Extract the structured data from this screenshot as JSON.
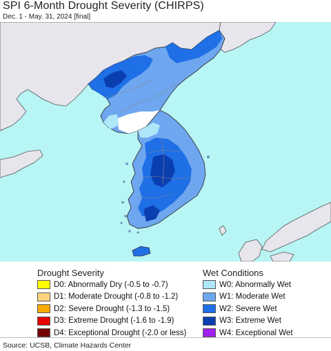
{
  "header": {
    "title": "SPI 6-Month Drought Severity (CHIRPS)",
    "subtitle": "Dec. 1 - May. 31, 2024 [final]"
  },
  "legend": {
    "drought": {
      "heading": "Drought Severity",
      "items": [
        {
          "label": "D0: Abnormally Dry (-0.5 to -0.7)",
          "color": "#ffff00"
        },
        {
          "label": "D1: Moderate Drought (-0.8 to -1.2)",
          "color": "#fcd37f"
        },
        {
          "label": "D2: Severe Drought (-1.3 to -1.5)",
          "color": "#ffaa00"
        },
        {
          "label": "D3: Extreme Drought (-1.6 to -1.9)",
          "color": "#e60000"
        },
        {
          "label": "D4: Exceptional Drought (-2.0 or less)",
          "color": "#730000"
        }
      ]
    },
    "wet": {
      "heading": "Wet Conditions",
      "items": [
        {
          "label": "W0: Abnormally Wet",
          "color": "#aee6fa"
        },
        {
          "label": "W1: Moderate Wet",
          "color": "#6ea7f0"
        },
        {
          "label": "W2: Severe Wet",
          "color": "#1f6fe6"
        },
        {
          "label": "W3: Extreme Wet",
          "color": "#0a3fb0"
        },
        {
          "label": "W4: Exceptional Wet",
          "color": "#a020f0"
        }
      ]
    }
  },
  "map": {
    "ocean_color": "#b8f5f5",
    "land_color": "#e6e6ec",
    "border_color": "#555555"
  },
  "footer": {
    "source": "Source: UCSB, Climate Hazards Center"
  }
}
